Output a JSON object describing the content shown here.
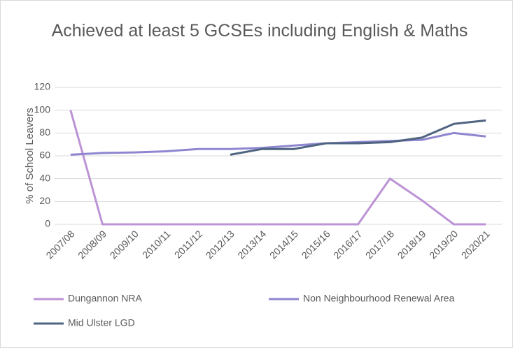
{
  "chart_data": {
    "type": "line",
    "title": "Achieved at least 5 GCSEs including English & Maths",
    "y_label": "% of School Leavers",
    "categories": [
      "2007/08",
      "2008/09",
      "2009/10",
      "2010/11",
      "2011/12",
      "2012/13",
      "2013/14",
      "2014/15",
      "2015/16",
      "2016/17",
      "2017/18",
      "2018/19",
      "2019/20",
      "2020/21"
    ],
    "series": [
      {
        "name": "Dungannon NRA",
        "color": "#bc93d6",
        "values": [
          100,
          0,
          0,
          0,
          0,
          0,
          0,
          0,
          0,
          0,
          40,
          21,
          0,
          0
        ]
      },
      {
        "name": "Non Neighbourhood Renewal Area",
        "color": "#8e86d0",
        "values": [
          61,
          62.5,
          63,
          64,
          66,
          66,
          67,
          69,
          71,
          72,
          73,
          74,
          80,
          77
        ]
      },
      {
        "name": "Mid Ulster LGD",
        "color": "#4f6480",
        "values": [
          null,
          null,
          null,
          null,
          null,
          61,
          66,
          66,
          71,
          71,
          72,
          76,
          88,
          91
        ]
      }
    ],
    "ylim": [
      0,
      120
    ],
    "yticks": [
      0,
      20,
      40,
      60,
      80,
      100,
      120
    ],
    "grid": true,
    "legend": "bottom"
  }
}
